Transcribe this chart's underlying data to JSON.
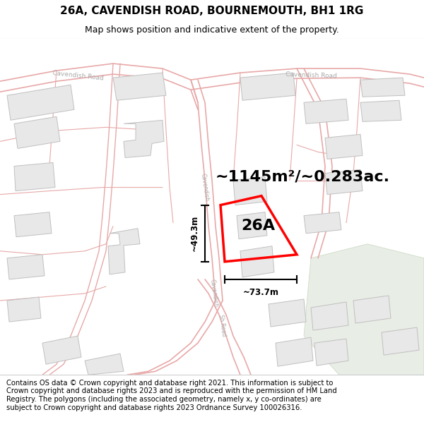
{
  "title": "26A, CAVENDISH ROAD, BOURNEMOUTH, BH1 1RG",
  "subtitle": "Map shows position and indicative extent of the property.",
  "area_label": "~1145m²/~0.283ac.",
  "property_label": "26A",
  "dim_height": "~49.3m",
  "dim_width": "~73.7m",
  "footer": "Contains OS data © Crown copyright and database right 2021. This information is subject to Crown copyright and database rights 2023 and is reproduced with the permission of HM Land Registry. The polygons (including the associated geometry, namely x, y co-ordinates) are subject to Crown copyright and database rights 2023 Ordnance Survey 100026316.",
  "map_bg": "#ffffff",
  "road_outline_color": "#e8a8a8",
  "road_fill_color": "#f8f0f0",
  "building_fill": "#e8e8e8",
  "building_outline": "#c0c0c0",
  "road_boundary_color": "#e09090",
  "property_fill": "none",
  "property_edge": "#ff0000",
  "green_area_fill": "#e8ede5",
  "green_area_edge": "#c8d8c0",
  "title_fontsize": 11,
  "subtitle_fontsize": 9,
  "area_fontsize": 16,
  "footer_fontsize": 7.2,
  "road_label_color": "#aaaaaa",
  "road_label_size": 6.5
}
